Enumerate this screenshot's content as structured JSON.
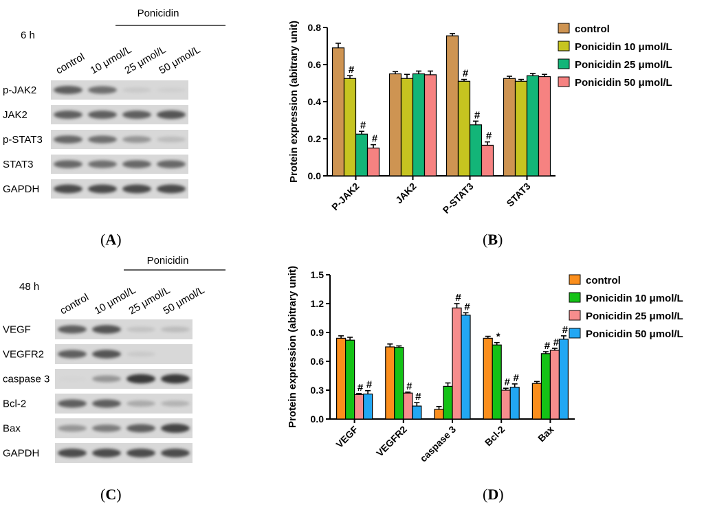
{
  "panels": {
    "A": {
      "letter": "A",
      "time": "6 h",
      "treatment": "Ponicidin",
      "lanes": [
        "control",
        "10 μmol/L",
        "25 μmol/L",
        "50 μmol/L"
      ],
      "rows": [
        {
          "label": "p-JAK2",
          "intensity": [
            0.75,
            0.65,
            0.2,
            0.15
          ]
        },
        {
          "label": "JAK2",
          "intensity": [
            0.75,
            0.75,
            0.75,
            0.8
          ]
        },
        {
          "label": "p-STAT3",
          "intensity": [
            0.7,
            0.65,
            0.5,
            0.3
          ]
        },
        {
          "label": "STAT3",
          "intensity": [
            0.7,
            0.65,
            0.7,
            0.7
          ]
        },
        {
          "label": "GAPDH",
          "intensity": [
            0.85,
            0.85,
            0.85,
            0.85
          ]
        }
      ]
    },
    "C": {
      "letter": "C",
      "time": "48 h",
      "treatment": "Ponicidin",
      "lanes": [
        "control",
        "10 μmol/L",
        "25 μmol/L",
        "50 μmol/L"
      ],
      "rows": [
        {
          "label": "VEGF",
          "intensity": [
            0.75,
            0.8,
            0.25,
            0.3
          ]
        },
        {
          "label": "VEGFR2",
          "intensity": [
            0.75,
            0.8,
            0.2,
            0.05
          ]
        },
        {
          "label": "caspase 3",
          "intensity": [
            0.1,
            0.5,
            0.95,
            0.95
          ]
        },
        {
          "label": "Bcl-2",
          "intensity": [
            0.75,
            0.75,
            0.4,
            0.35
          ]
        },
        {
          "label": "Bax",
          "intensity": [
            0.5,
            0.6,
            0.75,
            0.9
          ]
        },
        {
          "label": "GAPDH",
          "intensity": [
            0.85,
            0.85,
            0.85,
            0.85
          ]
        }
      ]
    }
  },
  "chart_data": [
    {
      "panel": "B",
      "type": "bar",
      "ylabel": "Protein expression (abitrary unit)",
      "ylim": [
        0,
        0.8
      ],
      "yticks": [
        "0.0",
        "0.2",
        "0.4",
        "0.6",
        "0.8"
      ],
      "categories": [
        "P-JAK2",
        "JAK2",
        "P-STAT3",
        "STAT3"
      ],
      "legend_position": "top-right",
      "series": [
        {
          "name": "control",
          "color": "#CE9452",
          "values": [
            0.69,
            0.55,
            0.755,
            0.525
          ],
          "errors": [
            0.025,
            0.012,
            0.012,
            0.012
          ],
          "marks": [
            "",
            "",
            "",
            ""
          ]
        },
        {
          "name": "Ponicidin 10 μmol/L",
          "color": "#C6C420",
          "values": [
            0.525,
            0.525,
            0.51,
            0.51
          ],
          "errors": [
            0.015,
            0.022,
            0.01,
            0.01
          ],
          "marks": [
            "#",
            "",
            "#",
            ""
          ]
        },
        {
          "name": "Ponicidin 25 μmol/L",
          "color": "#13B578",
          "values": [
            0.225,
            0.55,
            0.275,
            0.54
          ],
          "errors": [
            0.015,
            0.015,
            0.02,
            0.012
          ],
          "marks": [
            "#",
            "",
            "#",
            ""
          ]
        },
        {
          "name": "Ponicidin 50 μmol/L",
          "color": "#F68281",
          "values": [
            0.15,
            0.545,
            0.165,
            0.535
          ],
          "errors": [
            0.018,
            0.02,
            0.018,
            0.012
          ],
          "marks": [
            "#",
            "",
            "#",
            ""
          ]
        }
      ],
      "letter": "B"
    },
    {
      "panel": "D",
      "type": "bar",
      "ylabel": "Protein expression (abitrary unit)",
      "ylim": [
        0,
        1.5
      ],
      "yticks": [
        "0.0",
        "0.3",
        "0.6",
        "0.9",
        "1.2",
        "1.5"
      ],
      "categories": [
        "VEGF",
        "VEGFR2",
        "caspase 3",
        "Bcl-2",
        "Bax"
      ],
      "legend_position": "top-right",
      "series": [
        {
          "name": "control",
          "color": "#FB8E1C",
          "values": [
            0.84,
            0.75,
            0.1,
            0.84,
            0.37
          ],
          "errors": [
            0.025,
            0.03,
            0.03,
            0.02,
            0.02
          ],
          "marks": [
            "",
            "",
            "",
            "",
            ""
          ]
        },
        {
          "name": "Ponicidin 10 μmol/L",
          "color": "#14C216",
          "values": [
            0.82,
            0.745,
            0.34,
            0.77,
            0.68
          ],
          "errors": [
            0.03,
            0.015,
            0.035,
            0.025,
            0.02
          ],
          "marks": [
            "",
            "",
            "",
            "*",
            "#"
          ]
        },
        {
          "name": "Ponicidin 25 μmol/L",
          "color": "#F68D8D",
          "values": [
            0.255,
            0.27,
            1.155,
            0.3,
            0.715
          ],
          "errors": [
            0.01,
            0.01,
            0.045,
            0.02,
            0.02
          ],
          "marks": [
            "#",
            "#",
            "#",
            "#",
            "#"
          ]
        },
        {
          "name": "Ponicidin 50 μmol/L",
          "color": "#22A7F3",
          "values": [
            0.26,
            0.135,
            1.08,
            0.33,
            0.83
          ],
          "errors": [
            0.035,
            0.035,
            0.025,
            0.035,
            0.035
          ],
          "marks": [
            "#",
            "#",
            "#",
            "#",
            "#"
          ]
        }
      ],
      "letter": "D"
    }
  ]
}
